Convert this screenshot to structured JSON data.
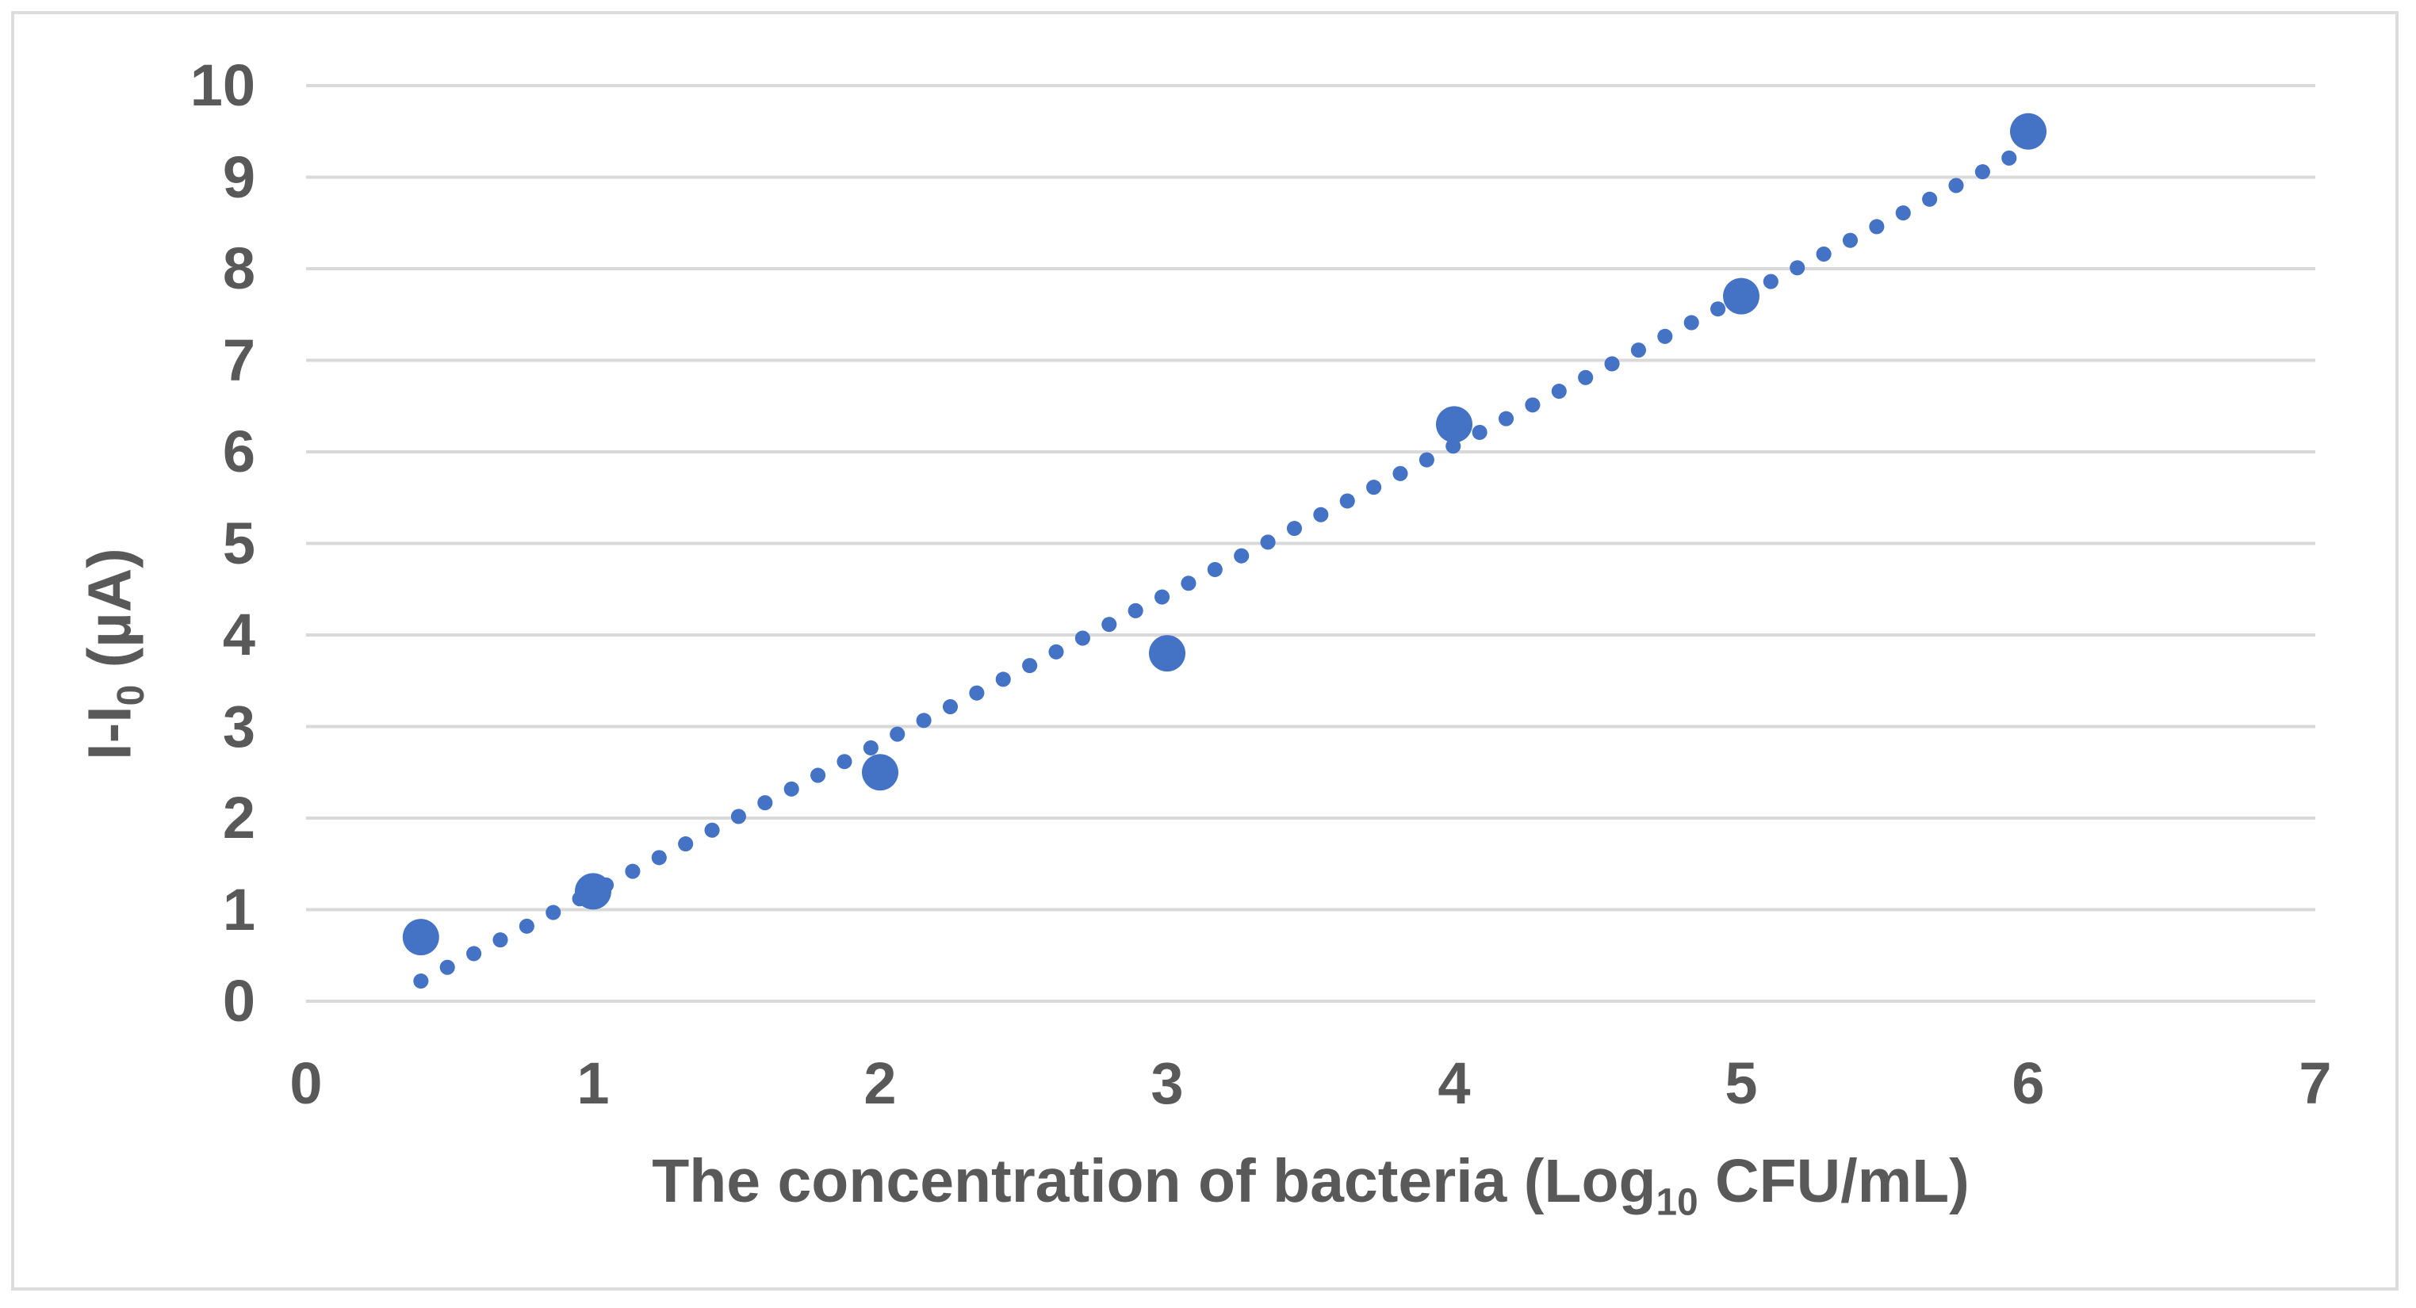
{
  "chart_data": {
    "type": "scatter",
    "title": "",
    "xlabel": "The concentration of bacteria (Log10 CFU/mL)",
    "xlabel_parts": [
      {
        "text": "The concentration of bacteria (Log"
      },
      {
        "text": "10",
        "sub": true
      },
      {
        "text": " CFU/mL)"
      }
    ],
    "ylabel": "I-I0 (µA)",
    "ylabel_parts": [
      {
        "text": "I-I"
      },
      {
        "text": "0",
        "sub": true
      },
      {
        "text": " (µA)"
      }
    ],
    "points": [
      {
        "x": 0.4,
        "y": 0.7
      },
      {
        "x": 1.0,
        "y": 1.2
      },
      {
        "x": 2.0,
        "y": 2.5
      },
      {
        "x": 3.0,
        "y": 3.8
      },
      {
        "x": 4.0,
        "y": 6.3
      },
      {
        "x": 5.0,
        "y": 7.7
      },
      {
        "x": 6.0,
        "y": 9.5
      }
    ],
    "trendline": {
      "style": "dotted",
      "x1": 0.4,
      "y1": 0.22,
      "x2": 5.94,
      "y2": 9.22
    },
    "xticks": [
      0,
      1,
      2,
      3,
      4,
      5,
      6,
      7
    ],
    "yticks": [
      0,
      1,
      2,
      3,
      4,
      5,
      6,
      7,
      8,
      9,
      10
    ],
    "xlim": [
      0,
      7
    ],
    "ylim": [
      0,
      10
    ],
    "grid": "horizontal",
    "legend": "none",
    "colors": {
      "marker": "#4472C4",
      "trendline": "#4472C4",
      "gridline": "#D9D9D9",
      "tick_label": "#595959",
      "axis_title": "#595959",
      "border": "#DCDCDC",
      "background": "#FFFFFF"
    }
  }
}
